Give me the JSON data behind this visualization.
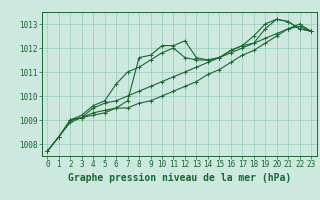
{
  "title": "Graphe pression niveau de la mer (hPa)",
  "background_color": "#cce8df",
  "grid_color": "#99ccbb",
  "line_color": "#1a6630",
  "spine_color": "#1a6630",
  "xlim": [
    -0.5,
    23.5
  ],
  "ylim": [
    1007.5,
    1013.5
  ],
  "yticks": [
    1008,
    1009,
    1010,
    1011,
    1012,
    1013
  ],
  "xticks": [
    0,
    1,
    2,
    3,
    4,
    5,
    6,
    7,
    8,
    9,
    10,
    11,
    12,
    13,
    14,
    15,
    16,
    17,
    18,
    19,
    20,
    21,
    22,
    23
  ],
  "series": [
    {
      "x": [
        0,
        1,
        2,
        3,
        4,
        5,
        6,
        7,
        8,
        9,
        10,
        11,
        12,
        13,
        14,
        15,
        16,
        17,
        18,
        19,
        20,
        21,
        22,
        23
      ],
      "y": [
        1007.7,
        1008.3,
        1009.0,
        1009.1,
        1009.2,
        1009.3,
        1009.5,
        1009.8,
        1011.6,
        1011.7,
        1012.1,
        1012.1,
        1012.3,
        1011.6,
        1011.5,
        1011.6,
        1011.9,
        1012.1,
        1012.2,
        1012.8,
        1013.2,
        1013.1,
        1012.8,
        1012.7
      ]
    },
    {
      "x": [
        0,
        1,
        2,
        3,
        4,
        5,
        6,
        7,
        8,
        9,
        10,
        11,
        12,
        13,
        14,
        15,
        16,
        17,
        18,
        19,
        20,
        21,
        22,
        23
      ],
      "y": [
        1007.7,
        1008.3,
        1009.0,
        1009.2,
        1009.6,
        1009.8,
        1010.5,
        1011.0,
        1011.2,
        1011.5,
        1011.8,
        1012.0,
        1011.6,
        1011.5,
        1011.5,
        1011.6,
        1011.9,
        1012.1,
        1012.5,
        1013.0,
        1013.2,
        1013.1,
        1012.8,
        1012.7
      ]
    },
    {
      "x": [
        0,
        1,
        2,
        3,
        4,
        5,
        6,
        7,
        8,
        9,
        10,
        11,
        12,
        13,
        14,
        15,
        16,
        17,
        18,
        19,
        20,
        21,
        22,
        23
      ],
      "y": [
        1007.7,
        1008.3,
        1008.9,
        1009.1,
        1009.3,
        1009.4,
        1009.5,
        1009.5,
        1009.7,
        1009.8,
        1010.0,
        1010.2,
        1010.4,
        1010.6,
        1010.9,
        1011.1,
        1011.4,
        1011.7,
        1011.9,
        1012.2,
        1012.5,
        1012.8,
        1012.9,
        1012.7
      ]
    },
    {
      "x": [
        2,
        3,
        4,
        5,
        6,
        7,
        8,
        9,
        10,
        11,
        12,
        13,
        14,
        15,
        16,
        17,
        18,
        19,
        20,
        21,
        22,
        23
      ],
      "y": [
        1009.0,
        1009.1,
        1009.5,
        1009.7,
        1009.8,
        1010.0,
        1010.2,
        1010.4,
        1010.6,
        1010.8,
        1011.0,
        1011.2,
        1011.4,
        1011.6,
        1011.8,
        1012.0,
        1012.2,
        1012.4,
        1012.6,
        1012.8,
        1013.0,
        1012.7
      ]
    }
  ],
  "marker": "+",
  "markersize": 3,
  "linewidth": 0.8,
  "title_fontsize": 7,
  "tick_fontsize": 5.5
}
